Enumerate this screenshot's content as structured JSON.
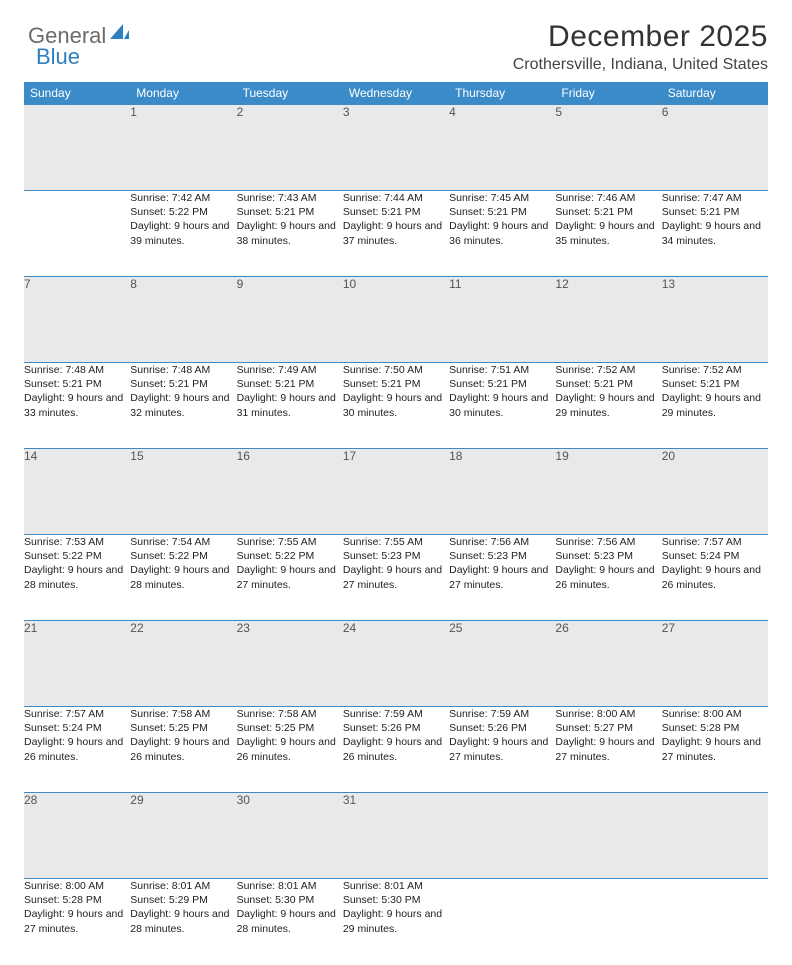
{
  "logo": {
    "part1": "General",
    "part2": "Blue"
  },
  "title": "December 2025",
  "location": "Crothersville, Indiana, United States",
  "colors": {
    "header_bg": "#3b8bc9",
    "header_text": "#ffffff",
    "daynum_bg": "#e9e9e9",
    "border": "#3b8bc9",
    "logo_gray": "#6b6b6b",
    "logo_blue": "#2f7fbf"
  },
  "weekdays": [
    "Sunday",
    "Monday",
    "Tuesday",
    "Wednesday",
    "Thursday",
    "Friday",
    "Saturday"
  ],
  "weeks": [
    [
      null,
      {
        "n": "1",
        "sr": "7:42 AM",
        "ss": "5:22 PM",
        "dl": "9 hours and 39 minutes."
      },
      {
        "n": "2",
        "sr": "7:43 AM",
        "ss": "5:21 PM",
        "dl": "9 hours and 38 minutes."
      },
      {
        "n": "3",
        "sr": "7:44 AM",
        "ss": "5:21 PM",
        "dl": "9 hours and 37 minutes."
      },
      {
        "n": "4",
        "sr": "7:45 AM",
        "ss": "5:21 PM",
        "dl": "9 hours and 36 minutes."
      },
      {
        "n": "5",
        "sr": "7:46 AM",
        "ss": "5:21 PM",
        "dl": "9 hours and 35 minutes."
      },
      {
        "n": "6",
        "sr": "7:47 AM",
        "ss": "5:21 PM",
        "dl": "9 hours and 34 minutes."
      }
    ],
    [
      {
        "n": "7",
        "sr": "7:48 AM",
        "ss": "5:21 PM",
        "dl": "9 hours and 33 minutes."
      },
      {
        "n": "8",
        "sr": "7:48 AM",
        "ss": "5:21 PM",
        "dl": "9 hours and 32 minutes."
      },
      {
        "n": "9",
        "sr": "7:49 AM",
        "ss": "5:21 PM",
        "dl": "9 hours and 31 minutes."
      },
      {
        "n": "10",
        "sr": "7:50 AM",
        "ss": "5:21 PM",
        "dl": "9 hours and 30 minutes."
      },
      {
        "n": "11",
        "sr": "7:51 AM",
        "ss": "5:21 PM",
        "dl": "9 hours and 30 minutes."
      },
      {
        "n": "12",
        "sr": "7:52 AM",
        "ss": "5:21 PM",
        "dl": "9 hours and 29 minutes."
      },
      {
        "n": "13",
        "sr": "7:52 AM",
        "ss": "5:21 PM",
        "dl": "9 hours and 29 minutes."
      }
    ],
    [
      {
        "n": "14",
        "sr": "7:53 AM",
        "ss": "5:22 PM",
        "dl": "9 hours and 28 minutes."
      },
      {
        "n": "15",
        "sr": "7:54 AM",
        "ss": "5:22 PM",
        "dl": "9 hours and 28 minutes."
      },
      {
        "n": "16",
        "sr": "7:55 AM",
        "ss": "5:22 PM",
        "dl": "9 hours and 27 minutes."
      },
      {
        "n": "17",
        "sr": "7:55 AM",
        "ss": "5:23 PM",
        "dl": "9 hours and 27 minutes."
      },
      {
        "n": "18",
        "sr": "7:56 AM",
        "ss": "5:23 PM",
        "dl": "9 hours and 27 minutes."
      },
      {
        "n": "19",
        "sr": "7:56 AM",
        "ss": "5:23 PM",
        "dl": "9 hours and 26 minutes."
      },
      {
        "n": "20",
        "sr": "7:57 AM",
        "ss": "5:24 PM",
        "dl": "9 hours and 26 minutes."
      }
    ],
    [
      {
        "n": "21",
        "sr": "7:57 AM",
        "ss": "5:24 PM",
        "dl": "9 hours and 26 minutes."
      },
      {
        "n": "22",
        "sr": "7:58 AM",
        "ss": "5:25 PM",
        "dl": "9 hours and 26 minutes."
      },
      {
        "n": "23",
        "sr": "7:58 AM",
        "ss": "5:25 PM",
        "dl": "9 hours and 26 minutes."
      },
      {
        "n": "24",
        "sr": "7:59 AM",
        "ss": "5:26 PM",
        "dl": "9 hours and 26 minutes."
      },
      {
        "n": "25",
        "sr": "7:59 AM",
        "ss": "5:26 PM",
        "dl": "9 hours and 27 minutes."
      },
      {
        "n": "26",
        "sr": "8:00 AM",
        "ss": "5:27 PM",
        "dl": "9 hours and 27 minutes."
      },
      {
        "n": "27",
        "sr": "8:00 AM",
        "ss": "5:28 PM",
        "dl": "9 hours and 27 minutes."
      }
    ],
    [
      {
        "n": "28",
        "sr": "8:00 AM",
        "ss": "5:28 PM",
        "dl": "9 hours and 27 minutes."
      },
      {
        "n": "29",
        "sr": "8:01 AM",
        "ss": "5:29 PM",
        "dl": "9 hours and 28 minutes."
      },
      {
        "n": "30",
        "sr": "8:01 AM",
        "ss": "5:30 PM",
        "dl": "9 hours and 28 minutes."
      },
      {
        "n": "31",
        "sr": "8:01 AM",
        "ss": "5:30 PM",
        "dl": "9 hours and 29 minutes."
      },
      null,
      null,
      null
    ]
  ],
  "labels": {
    "sunrise": "Sunrise:",
    "sunset": "Sunset:",
    "daylight": "Daylight:"
  }
}
